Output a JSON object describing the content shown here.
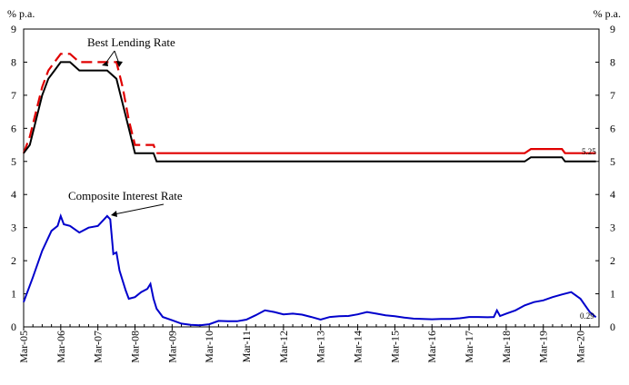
{
  "chart_data": {
    "type": "line",
    "y_unit_left": "% p.a.",
    "y_unit_right": "% p.a.",
    "ylim": [
      0,
      9
    ],
    "yticks": [
      "0",
      "1",
      "2",
      "3",
      "4",
      "5",
      "6",
      "7",
      "8",
      "9"
    ],
    "x_tick_labels": [
      "Mar-05",
      "Mar-06",
      "Mar-07",
      "Mar-08",
      "Mar-09",
      "Mar-10",
      "Mar-11",
      "Mar-12",
      "Mar-13",
      "Mar-14",
      "Mar-15",
      "Mar-16",
      "Mar-17",
      "Mar-18",
      "Mar-19",
      "Mar-20"
    ],
    "grid": false,
    "colors": {
      "blr_a": "#e00000",
      "blr_b": "#000000",
      "composite": "#0000cc"
    },
    "annotations": [
      {
        "text": "Best Lending Rate",
        "series": "blr"
      },
      {
        "text": "Composite Interest Rate",
        "series": "composite"
      }
    ],
    "end_labels": {
      "blr": "5.25",
      "composite": "0.29"
    },
    "series": [
      {
        "key": "blr_a",
        "style": "dashed-then-solid",
        "x": [
          "2005-03",
          "2005-05",
          "2005-07",
          "2005-09",
          "2005-11",
          "2006-01",
          "2006-03",
          "2006-06",
          "2006-09",
          "2006-12",
          "2007-03",
          "2007-06",
          "2007-09",
          "2007-11",
          "2008-01",
          "2008-03",
          "2008-06",
          "2008-09",
          "2008-10",
          "2009-03",
          "2010-03",
          "2011-03",
          "2012-03",
          "2013-03",
          "2014-03",
          "2015-03",
          "2016-03",
          "2017-03",
          "2017-12",
          "2018-03",
          "2018-06",
          "2018-09",
          "2018-11",
          "2019-03",
          "2019-09",
          "2019-10",
          "2020-03",
          "2020-08"
        ],
        "y": [
          5.25,
          5.75,
          6.5,
          7.25,
          7.75,
          8.0,
          8.25,
          8.25,
          8.0,
          8.0,
          8.0,
          8.0,
          8.0,
          7.25,
          6.25,
          5.5,
          5.5,
          5.5,
          5.25,
          5.25,
          5.25,
          5.25,
          5.25,
          5.25,
          5.25,
          5.25,
          5.25,
          5.25,
          5.25,
          5.25,
          5.25,
          5.25,
          5.375,
          5.375,
          5.375,
          5.25,
          5.25,
          5.25
        ]
      },
      {
        "key": "blr_b",
        "style": "solid",
        "x": [
          "2005-03",
          "2005-05",
          "2005-07",
          "2005-09",
          "2005-11",
          "2006-01",
          "2006-03",
          "2006-06",
          "2006-09",
          "2006-12",
          "2007-03",
          "2007-06",
          "2007-09",
          "2007-11",
          "2008-01",
          "2008-03",
          "2008-06",
          "2008-09",
          "2008-10",
          "2009-03",
          "2010-03",
          "2011-03",
          "2012-03",
          "2013-03",
          "2014-03",
          "2015-03",
          "2016-03",
          "2017-03",
          "2017-12",
          "2018-03",
          "2018-06",
          "2018-09",
          "2018-11",
          "2019-03",
          "2019-09",
          "2019-10",
          "2020-03",
          "2020-08"
        ],
        "y": [
          5.25,
          5.5,
          6.25,
          7.0,
          7.5,
          7.75,
          8.0,
          8.0,
          7.75,
          7.75,
          7.75,
          7.75,
          7.5,
          6.75,
          6.0,
          5.25,
          5.25,
          5.25,
          5.0,
          5.0,
          5.0,
          5.0,
          5.0,
          5.0,
          5.0,
          5.0,
          5.0,
          5.0,
          5.0,
          5.0,
          5.0,
          5.0,
          5.125,
          5.125,
          5.125,
          5.0,
          5.0,
          5.0
        ]
      },
      {
        "key": "composite",
        "style": "solid",
        "x": [
          "2005-03",
          "2005-06",
          "2005-09",
          "2005-12",
          "2006-02",
          "2006-03",
          "2006-04",
          "2006-06",
          "2006-09",
          "2006-12",
          "2007-03",
          "2007-05",
          "2007-06",
          "2007-07",
          "2007-08",
          "2007-09",
          "2007-10",
          "2007-12",
          "2008-01",
          "2008-03",
          "2008-05",
          "2008-07",
          "2008-08",
          "2008-09",
          "2008-10",
          "2008-12",
          "2009-03",
          "2009-06",
          "2009-09",
          "2009-12",
          "2010-03",
          "2010-06",
          "2010-09",
          "2010-12",
          "2011-03",
          "2011-06",
          "2011-09",
          "2011-12",
          "2012-03",
          "2012-06",
          "2012-09",
          "2012-12",
          "2013-03",
          "2013-06",
          "2013-09",
          "2013-12",
          "2014-03",
          "2014-06",
          "2014-09",
          "2014-12",
          "2015-03",
          "2015-06",
          "2015-09",
          "2015-12",
          "2016-03",
          "2016-06",
          "2016-09",
          "2016-12",
          "2017-03",
          "2017-06",
          "2017-09",
          "2017-11",
          "2017-12",
          "2018-01",
          "2018-03",
          "2018-06",
          "2018-09",
          "2018-12",
          "2019-03",
          "2019-06",
          "2019-09",
          "2019-12",
          "2020-03",
          "2020-06",
          "2020-08"
        ],
        "y": [
          0.75,
          1.5,
          2.3,
          2.9,
          3.05,
          3.35,
          3.1,
          3.05,
          2.85,
          3.0,
          3.05,
          3.25,
          3.35,
          3.25,
          2.2,
          2.25,
          1.7,
          1.1,
          0.85,
          0.9,
          1.05,
          1.15,
          1.3,
          0.85,
          0.55,
          0.3,
          0.2,
          0.1,
          0.06,
          0.05,
          0.08,
          0.18,
          0.17,
          0.17,
          0.22,
          0.35,
          0.5,
          0.45,
          0.38,
          0.4,
          0.37,
          0.3,
          0.22,
          0.3,
          0.32,
          0.33,
          0.38,
          0.45,
          0.4,
          0.35,
          0.32,
          0.28,
          0.25,
          0.24,
          0.23,
          0.24,
          0.24,
          0.26,
          0.3,
          0.3,
          0.29,
          0.3,
          0.5,
          0.33,
          0.4,
          0.5,
          0.65,
          0.75,
          0.8,
          0.9,
          0.98,
          1.05,
          0.85,
          0.45,
          0.29
        ]
      }
    ]
  }
}
